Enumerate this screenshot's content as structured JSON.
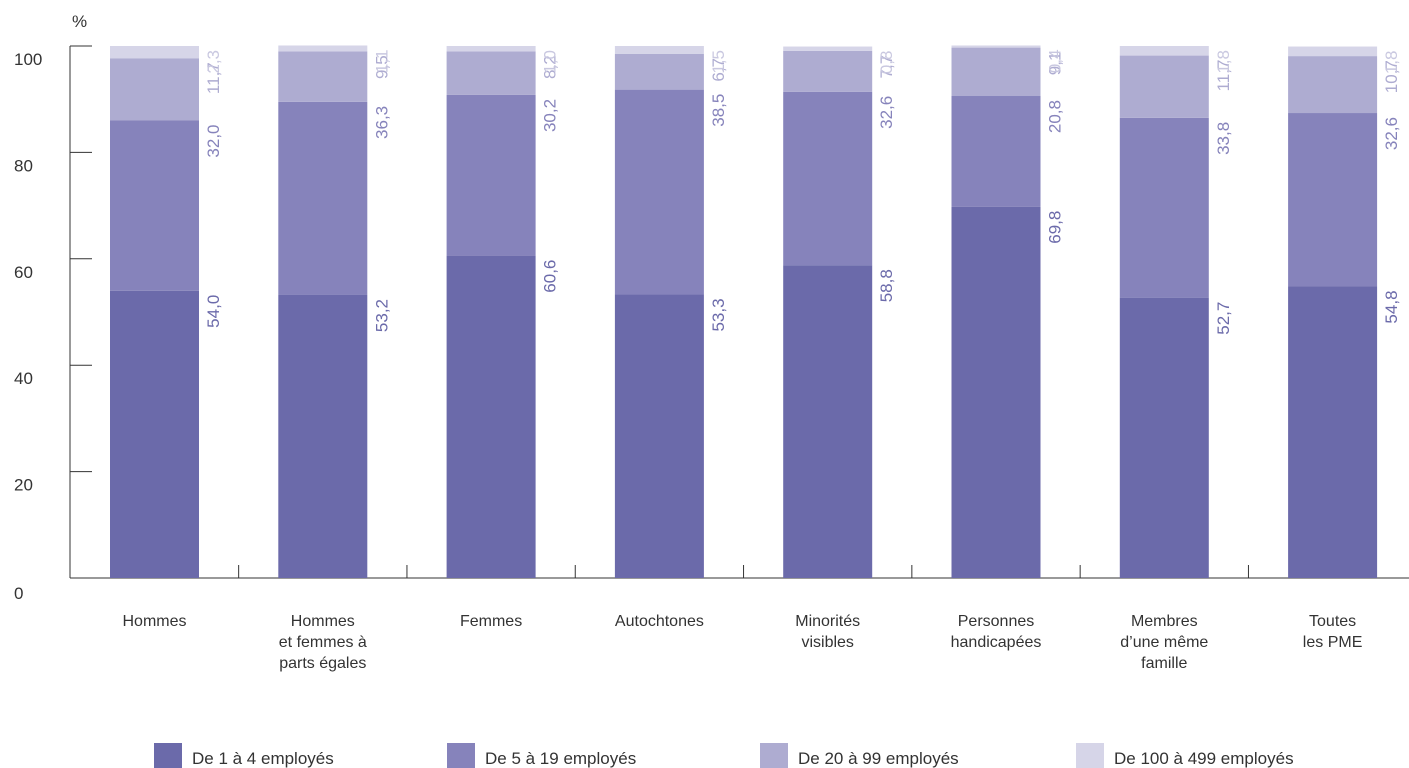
{
  "chart_data": {
    "type": "bar",
    "stacked": true,
    "unit_label": "%",
    "ylim": [
      0,
      100
    ],
    "yticks": [
      "0",
      "20",
      "40",
      "60",
      "80",
      "100"
    ],
    "categories": [
      [
        "Hommes"
      ],
      [
        "Hommes",
        "et femmes à",
        "parts égales"
      ],
      [
        "Femmes"
      ],
      [
        "Autochtones"
      ],
      [
        "Minorités",
        "visibles"
      ],
      [
        "Personnes",
        "handicapées"
      ],
      [
        "Membres",
        "d’une même",
        "famille"
      ],
      [
        "Toutes",
        "les PME"
      ]
    ],
    "series": [
      {
        "name": "De 1 à 4 employés",
        "color": "#6b6aaa",
        "values": [
          54.0,
          53.2,
          60.6,
          53.3,
          58.8,
          69.8,
          52.7,
          54.8
        ],
        "labels": [
          "54,0",
          "53,2",
          "60,6",
          "53,3",
          "58,8",
          "69,8",
          "52,7",
          "54,8"
        ]
      },
      {
        "name": "De 5 à 19 employés",
        "color": "#8683bb",
        "values": [
          32.0,
          36.3,
          30.2,
          38.5,
          32.6,
          20.8,
          33.8,
          32.6
        ],
        "labels": [
          "32,0",
          "36,3",
          "30,2",
          "38,5",
          "32,6",
          "20,8",
          "33,8",
          "32,6"
        ]
      },
      {
        "name": "De 20 à 99 employés",
        "color": "#aeacd1",
        "values": [
          11.7,
          9.5,
          8.2,
          6.7,
          7.7,
          9.1,
          11.7,
          10.7
        ],
        "labels": [
          "11,7",
          "9,5",
          "8,2",
          "6,7",
          "7,7",
          "9,1",
          "11,7",
          "10,7"
        ]
      },
      {
        "name": "De 100 à 499 employés",
        "color": "#d6d5e8",
        "values": [
          2.3,
          1.1,
          1.0,
          1.5,
          0.8,
          0.4,
          1.8,
          1.8
        ],
        "labels": [
          "2,3",
          "1,1",
          "1,0",
          "1,5",
          "0,8",
          "0,4",
          "1,8",
          "1,8"
        ]
      }
    ],
    "label_colors": [
      "#6b6aaa",
      "#8683bb",
      "#aeacd1",
      "#c9c8e0"
    ],
    "legend_position": "bottom",
    "grid": false
  }
}
